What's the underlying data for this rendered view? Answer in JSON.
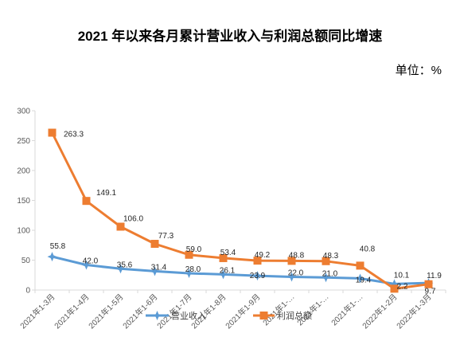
{
  "chart_data": {
    "type": "line",
    "title": "2021 年以来各月累计营业收入与利润总额同比增速",
    "unit_label": "单位：%",
    "categories": [
      "2021年1-3月",
      "2021年1-4月",
      "2021年1-5月",
      "2021年1-6月",
      "2021年1-7月",
      "2021年1-8月",
      "2021年1-9月",
      "2021年1-…",
      "2021年1-…",
      "2021年1-…",
      "2022年1-2月",
      "2022年1-3月"
    ],
    "ylim": [
      0,
      300
    ],
    "yticks": [
      0,
      50,
      100,
      150,
      200,
      250,
      300
    ],
    "grid": false,
    "legend_position": "bottom",
    "data_labels": true,
    "series": [
      {
        "name": "营业收入",
        "color": "#5B9BD5",
        "marker": "diamond",
        "values": [
          55.8,
          42.0,
          35.6,
          31.4,
          28.0,
          26.1,
          23.9,
          22.0,
          21.0,
          19.4,
          10.1,
          11.9
        ]
      },
      {
        "name": "利润总额",
        "color": "#ED7D31",
        "marker": "square",
        "values": [
          263.3,
          149.1,
          106.0,
          77.3,
          59.0,
          53.4,
          49.2,
          48.8,
          48.3,
          40.8,
          2.2,
          9.7
        ]
      }
    ]
  }
}
